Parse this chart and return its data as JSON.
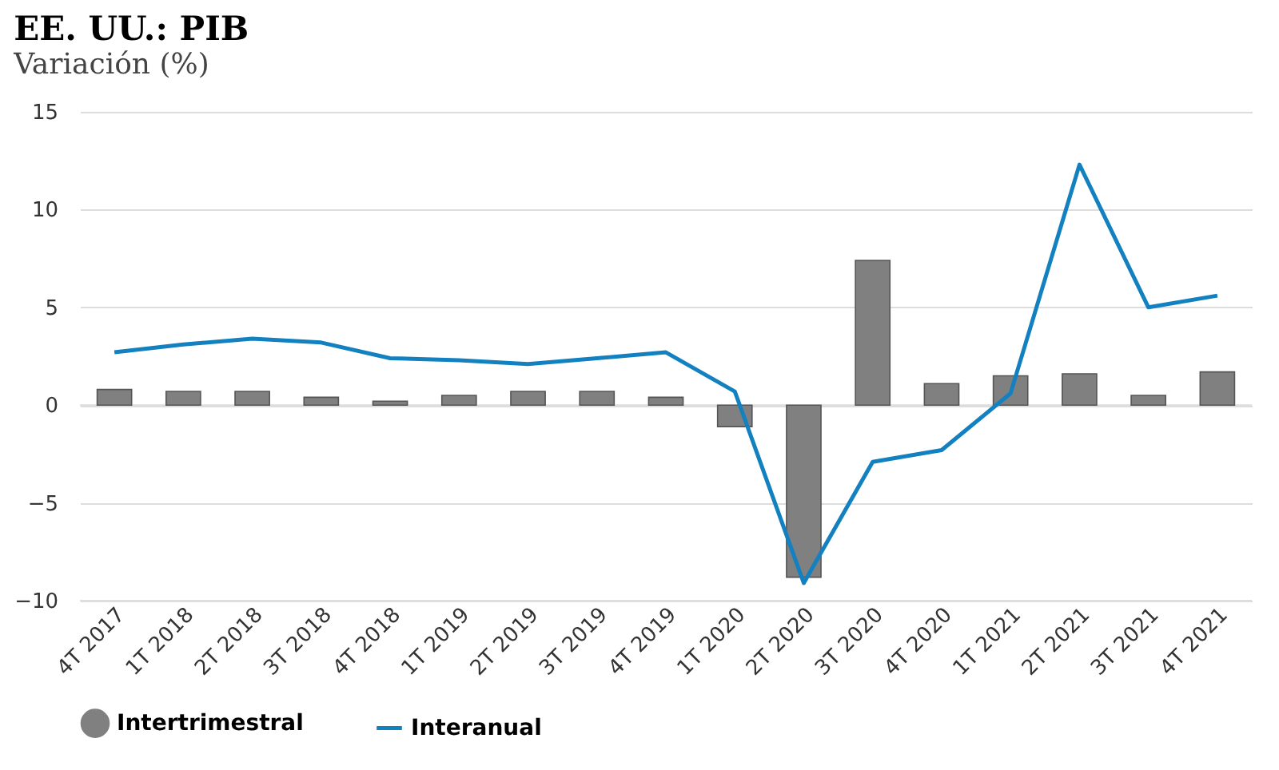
{
  "chart_data": {
    "type": "bar",
    "title": "EE. UU.: PIB",
    "subtitle": "Variación (%)",
    "categories": [
      "4T 2017",
      "1T 2018",
      "2T 2018",
      "3T 2018",
      "4T 2018",
      "1T 2019",
      "2T 2019",
      "3T 2019",
      "4T 2019",
      "1T 2020",
      "2T 2020",
      "3T 2020",
      "4T 2020",
      "1T 2021",
      "2T 2021",
      "3T 2021",
      "4T 2021"
    ],
    "series": [
      {
        "name": "Intertrimestral",
        "type": "bar",
        "color": "#808080",
        "values": [
          0.8,
          0.7,
          0.7,
          0.4,
          0.2,
          0.5,
          0.7,
          0.7,
          0.4,
          -1.1,
          -8.8,
          7.4,
          1.1,
          1.5,
          1.6,
          0.5,
          1.7
        ]
      },
      {
        "name": "Interanual",
        "type": "line",
        "color": "#1380c0",
        "values": [
          2.7,
          3.1,
          3.4,
          3.2,
          2.4,
          2.3,
          2.1,
          2.4,
          2.7,
          0.7,
          -9.1,
          -2.9,
          -2.3,
          0.6,
          12.3,
          5.0,
          5.6
        ]
      }
    ],
    "ylim": [
      -10,
      15
    ],
    "yticks": [
      -10,
      -5,
      0,
      5,
      10,
      15
    ],
    "grid": "y",
    "legend": "bottom"
  }
}
